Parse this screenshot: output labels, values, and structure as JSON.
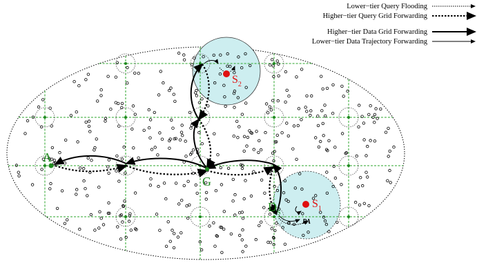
{
  "legend": [
    {
      "label": "Lower−tier Query Flooding",
      "style": "thin-dotted"
    },
    {
      "label": "Higher−tier Query Grid Forwarding",
      "style": "thick-dotted"
    },
    {
      "label": "Higher−tier Data Grid Forwarding",
      "style": "thick-solid"
    },
    {
      "label": "Lower−tier Data Trajectory Forwarding",
      "style": "thin-solid"
    }
  ],
  "nodes": {
    "a": "A",
    "g": "G",
    "d": {
      "main": "D",
      "sub": "S"
    },
    "s1": {
      "main": "S",
      "sub": "1"
    },
    "s2": {
      "main": "S",
      "sub": "2"
    },
    "pa": "PA"
  },
  "colors": {
    "grid": "#2aa52a",
    "node": "#1f8a1f",
    "source": "#e01010",
    "region_fill": "#cdeef0",
    "sensor": "#000000"
  }
}
